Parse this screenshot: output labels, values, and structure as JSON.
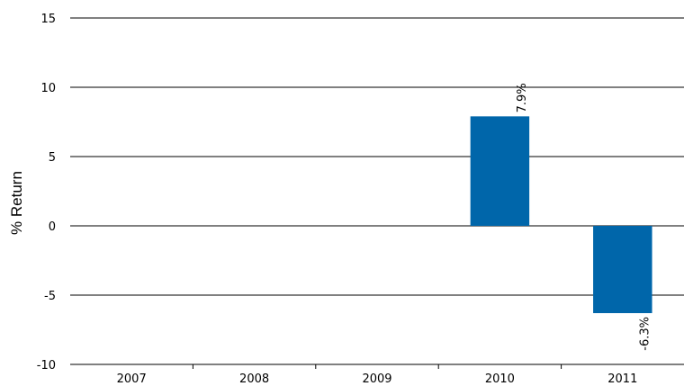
{
  "chart_data": {
    "type": "bar",
    "title": "",
    "xlabel": "",
    "ylabel": "% Return",
    "ylim": [
      -10,
      15
    ],
    "yticks": [
      15,
      10,
      5,
      0,
      -5,
      -10
    ],
    "categories": [
      "2007",
      "2008",
      "2009",
      "2010",
      "2011"
    ],
    "values": [
      null,
      null,
      null,
      7.9,
      -6.3
    ],
    "data_labels": [
      "",
      "",
      "",
      "7.9%",
      "-6.3%"
    ],
    "bar_color": "#0066aa",
    "grid": true,
    "legend": "none"
  }
}
